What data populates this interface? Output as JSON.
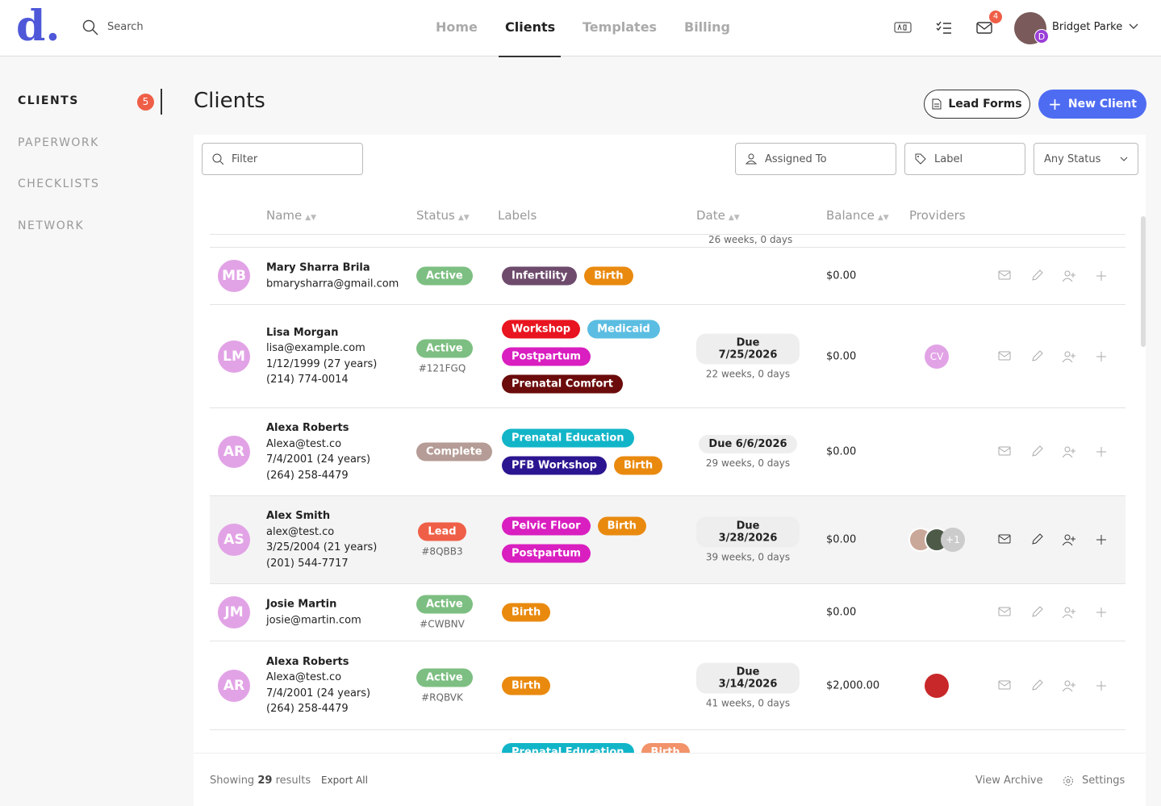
{
  "header": {
    "logo": "d.",
    "search": "Search",
    "nav": [
      "Home",
      "Clients",
      "Templates",
      "Billing"
    ],
    "active_nav": 1,
    "inbox_badge": "4",
    "user": "Bridget Parke",
    "user_badge": "D"
  },
  "sidebar": {
    "items": [
      "CLIENTS",
      "PAPERWORK",
      "CHECKLISTS",
      "NETWORK"
    ],
    "clients_badge": "5"
  },
  "page": {
    "title": "Clients",
    "lead_forms": "Lead Forms",
    "new_client": "New Client"
  },
  "filters": {
    "filter": "Filter",
    "assigned_to": "Assigned To",
    "label": "Label",
    "status": "Any Status"
  },
  "table": {
    "columns": [
      "Name",
      "Status",
      "Labels",
      "Date",
      "Balance",
      "Providers"
    ],
    "top_partial_weeks": "26 weeks, 0 days",
    "rows": [
      {
        "initials": "MB",
        "name": "Mary Sharra Brila",
        "lines": [
          "bmarysharra@gmail.com"
        ],
        "status": "Active",
        "status_color": "#7dbf82",
        "code": null,
        "labels": [
          {
            "text": "Infertility",
            "color": "#6e4b6c"
          },
          {
            "text": "Birth",
            "color": "#e98a0f"
          }
        ],
        "due": null,
        "weeks": null,
        "balance": "$0.00",
        "providers": []
      },
      {
        "initials": "LM",
        "name": "Lisa Morgan",
        "lines": [
          "lisa@example.com",
          "1/12/1999 (27 years)",
          "(214) 774-0014"
        ],
        "status": "Active",
        "status_color": "#7dbf82",
        "code": "#121FGQ",
        "labels": [
          {
            "text": "Workshop",
            "color": "#e8141f"
          },
          {
            "text": "Medicaid",
            "color": "#5bbde2"
          },
          {
            "text": "Postpartum",
            "color": "#d91fc0"
          },
          {
            "text": "Prenatal Comfort",
            "color": "#6b0b0b"
          }
        ],
        "due": "Due 7/25/2026",
        "weeks": "22 weeks, 0 days",
        "balance": "$0.00",
        "providers": [
          "CV"
        ]
      },
      {
        "initials": "AR",
        "name": "Alexa Roberts",
        "lines": [
          "Alexa@test.co",
          "7/4/2001 (24 years)",
          "(264) 258-4479"
        ],
        "status": "Complete",
        "status_color": "#b59c96",
        "code": null,
        "labels": [
          {
            "text": "Prenatal Education",
            "color": "#12b5c8"
          },
          {
            "text": "PFB Workshop",
            "color": "#2c1590"
          },
          {
            "text": "Birth",
            "color": "#e98a0f"
          }
        ],
        "due": "Due 6/6/2026",
        "weeks": "29 weeks, 0 days",
        "balance": "$0.00",
        "providers": []
      },
      {
        "initials": "AS",
        "name": "Alex Smith",
        "lines": [
          "alex@test.co",
          "3/25/2004 (21 years)",
          "(201) 544-7717"
        ],
        "status": "Lead",
        "status_color": "#ef5f47",
        "code": "#8QBB3",
        "labels": [
          {
            "text": "Pelvic Floor",
            "color": "#d91fc0"
          },
          {
            "text": "Birth",
            "color": "#e98a0f"
          },
          {
            "text": "Postpartum",
            "color": "#d91fc0"
          }
        ],
        "due": "Due 3/28/2026",
        "weeks": "39 weeks, 0 days",
        "balance": "$0.00",
        "providers": [
          "+1"
        ]
      },
      {
        "initials": "JM",
        "name": "Josie Martin",
        "lines": [
          "josie@martin.com"
        ],
        "status": "Active",
        "status_color": "#7dbf82",
        "code": "#CWBNV",
        "labels": [
          {
            "text": "Birth",
            "color": "#e98a0f"
          }
        ],
        "due": null,
        "weeks": null,
        "balance": "$0.00",
        "providers": []
      },
      {
        "initials": "AR",
        "name": "Alexa Roberts",
        "lines": [
          "Alexa@test.co",
          "7/4/2001 (24 years)",
          "(264) 258-4479"
        ],
        "status": "Active",
        "status_color": "#7dbf82",
        "code": "#RQBVK",
        "labels": [
          {
            "text": "Birth",
            "color": "#e98a0f"
          }
        ],
        "due": "Due 3/14/2026",
        "weeks": "41 weeks, 0 days",
        "balance": "$2,000.00",
        "providers": []
      }
    ],
    "bottom_partial_labels": [
      {
        "text": "Prenatal Education",
        "color": "#12b5c8"
      },
      {
        "text": "Birth",
        "color": "#f2936a"
      }
    ]
  },
  "footer": {
    "showing": "Showing",
    "count": "29",
    "results": "results",
    "export": "Export All",
    "archive": "View Archive",
    "settings": "Settings"
  }
}
